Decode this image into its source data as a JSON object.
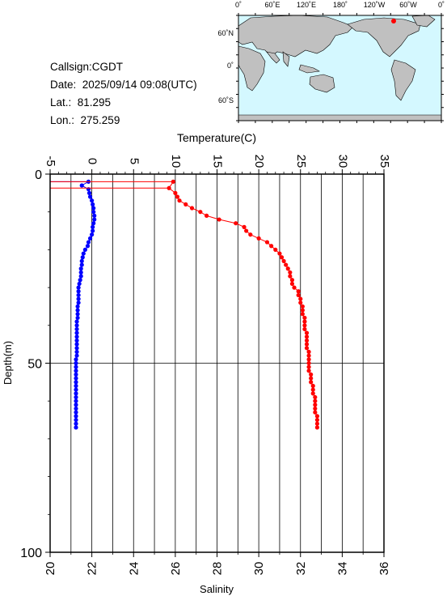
{
  "info": {
    "callsign": "Callsign:CGDT",
    "date": "Date:  2025/09/14 09:08(UTC)",
    "lat": "Lat.:  81.295",
    "lon": "Lon.:  275.259"
  },
  "map": {
    "top_labels": [
      "0˚",
      "60˚E",
      "120˚E",
      "180˚",
      "120˚W",
      "60˚W",
      "0˚"
    ],
    "left_labels": [
      "60˚N",
      "0˚",
      "60˚S"
    ],
    "ocean_color": "#d4f8ff",
    "land_color": "#c0c0c0",
    "marker_color": "#ff0000",
    "marker": {
      "lon": 275.259,
      "lat": 81.295
    }
  },
  "chart_data": {
    "type": "line",
    "xlabel_top": "Temperature(C)",
    "xlabel_bottom": "Salinity",
    "ylabel": "Depth(m)",
    "temperature_axis": {
      "range": [
        -5,
        35
      ],
      "ticks": [
        -5,
        0,
        5,
        10,
        15,
        20,
        25,
        30,
        35
      ]
    },
    "salinity_axis": {
      "range": [
        20,
        36
      ],
      "ticks": [
        20,
        22,
        24,
        26,
        28,
        30,
        32,
        34,
        36
      ]
    },
    "depth_axis": {
      "range": [
        0,
        100
      ],
      "ticks": [
        0,
        50,
        100
      ],
      "inverted": true
    },
    "grid": true,
    "series": [
      {
        "name": "Temperature",
        "axis": "temperature",
        "color": "#0000ff",
        "depth": [
          2,
          3,
          4,
          5,
          6,
          7,
          8,
          9,
          10,
          11,
          12,
          13,
          14,
          15,
          16,
          17,
          18,
          19,
          20,
          21,
          22,
          23,
          24,
          25,
          26,
          27,
          28,
          29,
          30,
          31,
          32,
          33,
          34,
          35,
          36,
          37,
          38,
          39,
          40,
          41,
          42,
          43,
          44,
          45,
          46,
          47,
          48,
          49,
          50,
          51,
          52,
          53,
          54,
          55,
          56,
          57,
          58,
          59,
          60,
          61,
          62,
          63,
          64,
          65,
          66,
          67
        ],
        "values": [
          -0.4,
          -1.2,
          -0.4,
          -0.3,
          -0.2,
          0.0,
          0.1,
          0.2,
          0.2,
          0.3,
          0.3,
          0.2,
          0.1,
          0.1,
          0.0,
          -0.2,
          -0.4,
          -0.5,
          -0.8,
          -1.0,
          -1.1,
          -1.2,
          -1.2,
          -1.3,
          -1.3,
          -1.3,
          -1.4,
          -1.5,
          -1.6,
          -1.6,
          -1.6,
          -1.6,
          -1.6,
          -1.7,
          -1.7,
          -1.7,
          -1.7,
          -1.8,
          -1.8,
          -1.8,
          -1.8,
          -1.8,
          -1.8,
          -1.8,
          -1.8,
          -1.8,
          -1.8,
          -1.9,
          -1.9,
          -1.9,
          -1.9,
          -1.9,
          -1.9,
          -1.9,
          -1.9,
          -1.9,
          -1.9,
          -1.9,
          -1.9,
          -1.9,
          -1.9,
          -1.9,
          -1.9,
          -1.9,
          -1.9,
          -1.9
        ]
      },
      {
        "name": "Salinity",
        "axis": "salinity",
        "color": "#ff0000",
        "depth": [
          2,
          3.7,
          5,
          6,
          7,
          8,
          9,
          10,
          11,
          12,
          13,
          14,
          15,
          16,
          17,
          18,
          19,
          20,
          21,
          22,
          23,
          24,
          25,
          26,
          27,
          28,
          29,
          30,
          31,
          32,
          33,
          34,
          35,
          36,
          37,
          38,
          39,
          40,
          41,
          42,
          43,
          44,
          45,
          46,
          47,
          48,
          49,
          50,
          51,
          52,
          53,
          54,
          55,
          56,
          57,
          58,
          59,
          60,
          61,
          62,
          63,
          64,
          65,
          66,
          67
        ],
        "values": [
          25.9,
          25.7,
          26.0,
          26.1,
          26.2,
          26.5,
          26.8,
          27.2,
          27.5,
          28.1,
          28.9,
          29.3,
          29.4,
          29.6,
          30.0,
          30.4,
          30.6,
          30.8,
          31.0,
          31.1,
          31.2,
          31.3,
          31.4,
          31.5,
          31.5,
          31.6,
          31.6,
          31.7,
          31.9,
          31.9,
          32.0,
          32.0,
          32.1,
          32.1,
          32.1,
          32.2,
          32.2,
          32.2,
          32.2,
          32.3,
          32.3,
          32.3,
          32.3,
          32.3,
          32.4,
          32.4,
          32.4,
          32.4,
          32.4,
          32.4,
          32.5,
          32.5,
          32.5,
          32.6,
          32.6,
          32.6,
          32.7,
          32.7,
          32.7,
          32.7,
          32.7,
          32.8,
          32.8,
          32.8,
          32.8
        ]
      }
    ]
  }
}
